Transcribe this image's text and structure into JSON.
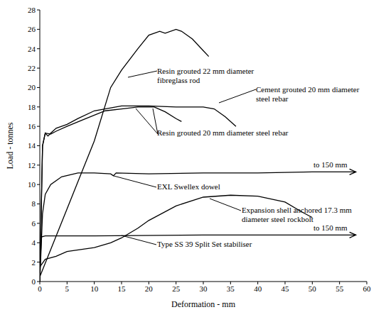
{
  "chart_data": {
    "type": "line",
    "x_label": "Deformation - mm",
    "y_label": "Load - tonnes",
    "xlim": [
      0,
      60
    ],
    "xticks": [
      0,
      5,
      10,
      15,
      20,
      25,
      30,
      35,
      40,
      45,
      50,
      55,
      60
    ],
    "ylim": [
      0,
      28
    ],
    "yticks": [
      0,
      2,
      4,
      6,
      8,
      10,
      12,
      14,
      16,
      18,
      20,
      22,
      24,
      26,
      28
    ],
    "grid": false,
    "legend": "none",
    "annotations": [
      {
        "text": "to 150 mm",
        "series": "EXL Swellex dowel"
      },
      {
        "text": "to 150 mm",
        "series": "Type SS 39 Split Set stabiliser"
      }
    ],
    "series": [
      {
        "name": "Resin grouted 22 mm diameter fibreglass rod",
        "color": "#000000",
        "x": [
          0,
          5,
          10,
          13,
          15,
          18,
          20,
          22,
          23,
          25,
          26,
          28,
          30,
          31
        ],
        "values": [
          0.5,
          7.5,
          14.5,
          20,
          21.8,
          24,
          25.4,
          25.8,
          25.6,
          26,
          25.8,
          25,
          23.8,
          23.2
        ]
      },
      {
        "name": "Cement grouted 20 mm diameter steel rebar",
        "color": "#000000",
        "x": [
          0,
          0.5,
          1,
          1.5,
          2,
          3,
          5,
          7,
          10,
          15,
          20,
          25,
          30,
          32,
          34,
          36
        ],
        "values": [
          0,
          14,
          15.3,
          15,
          15.3,
          15.8,
          16.2,
          16.8,
          17.6,
          18.1,
          18.1,
          18,
          18,
          17.8,
          17,
          16
        ]
      },
      {
        "name": "Resin grouted 20 mm diameter steel rebar",
        "color": "#000000",
        "x": [
          0,
          0.5,
          1,
          2,
          3,
          5,
          8,
          12,
          15,
          18,
          21,
          23,
          25,
          26
        ],
        "values": [
          0,
          14,
          15.3,
          15.2,
          15.5,
          16,
          16.7,
          17.6,
          17.8,
          18,
          18,
          17.5,
          16.8,
          16.5
        ]
      },
      {
        "name": "EXL Swellex dowel",
        "color": "#000000",
        "marker": "arrow",
        "x": [
          0,
          0.5,
          1,
          2,
          4,
          7,
          10,
          13,
          13.5,
          14,
          20,
          30,
          40,
          50,
          58
        ],
        "values": [
          0,
          7,
          9,
          10,
          10.8,
          11.2,
          11.2,
          11.1,
          10.9,
          11.2,
          11.1,
          11.2,
          11.2,
          11.3,
          11.3
        ]
      },
      {
        "name": "Expansion shell anchored 17.3 mm diameter steel rockbolt",
        "color": "#000000",
        "x": [
          0,
          1,
          3,
          5,
          10,
          13,
          15,
          18,
          20,
          25,
          30,
          35,
          40,
          45,
          48,
          50
        ],
        "values": [
          1.5,
          2.3,
          2.6,
          3.1,
          3.5,
          4,
          4.5,
          5.5,
          6.3,
          7.8,
          8.7,
          8.9,
          8.8,
          8.2,
          7.2,
          6.6
        ]
      },
      {
        "name": "Type SS 39 Split Set stabiliser",
        "color": "#000000",
        "marker": "arrow",
        "x": [
          0,
          0.3,
          1,
          10,
          30,
          58
        ],
        "values": [
          1,
          4.6,
          4.7,
          4.7,
          4.8,
          4.8
        ]
      }
    ]
  }
}
